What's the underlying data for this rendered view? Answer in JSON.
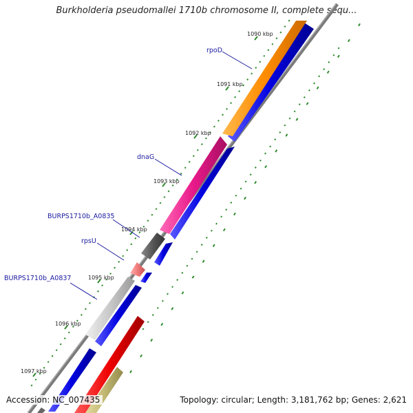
{
  "title": "Burkholderia pseudomallei 1710b chromosome II, complete sequ...",
  "accession": "Accession: NC_007435",
  "summary": "Topology: circular; Length: 3,181,762 bp; Genes: 2,621",
  "colors": {
    "backbone": "#7a7a7a",
    "tick_mark": "#2e8b2e",
    "label_text": "#1a1aa0",
    "label_line": "#1a1aa0",
    "gene_blue": "#0000e0",
    "gene_orange": "#ff8c00",
    "gene_magenta": "#e8198a",
    "gene_darkgray": "#555555",
    "gene_pink": "#f07a7a",
    "gene_lightgray": "#c8c8c8",
    "gene_red": "#ee0000",
    "gene_khaki": "#c2b872"
  },
  "ticks": [
    {
      "label": "1090 kbp"
    },
    {
      "label": "1091 kbp"
    },
    {
      "label": "1092 kbp"
    },
    {
      "label": "1093 kbp"
    },
    {
      "label": "1094 kbp"
    },
    {
      "label": "1095 kbp"
    },
    {
      "label": "1096 kbp"
    },
    {
      "label": "1097 kbp"
    }
  ],
  "gene_labels": [
    {
      "label": "rpoD"
    },
    {
      "label": "dnaG"
    },
    {
      "label": "BURPS1710b_A0835"
    },
    {
      "label": "rpsU"
    },
    {
      "label": "BURPS1710b_A0837"
    }
  ]
}
